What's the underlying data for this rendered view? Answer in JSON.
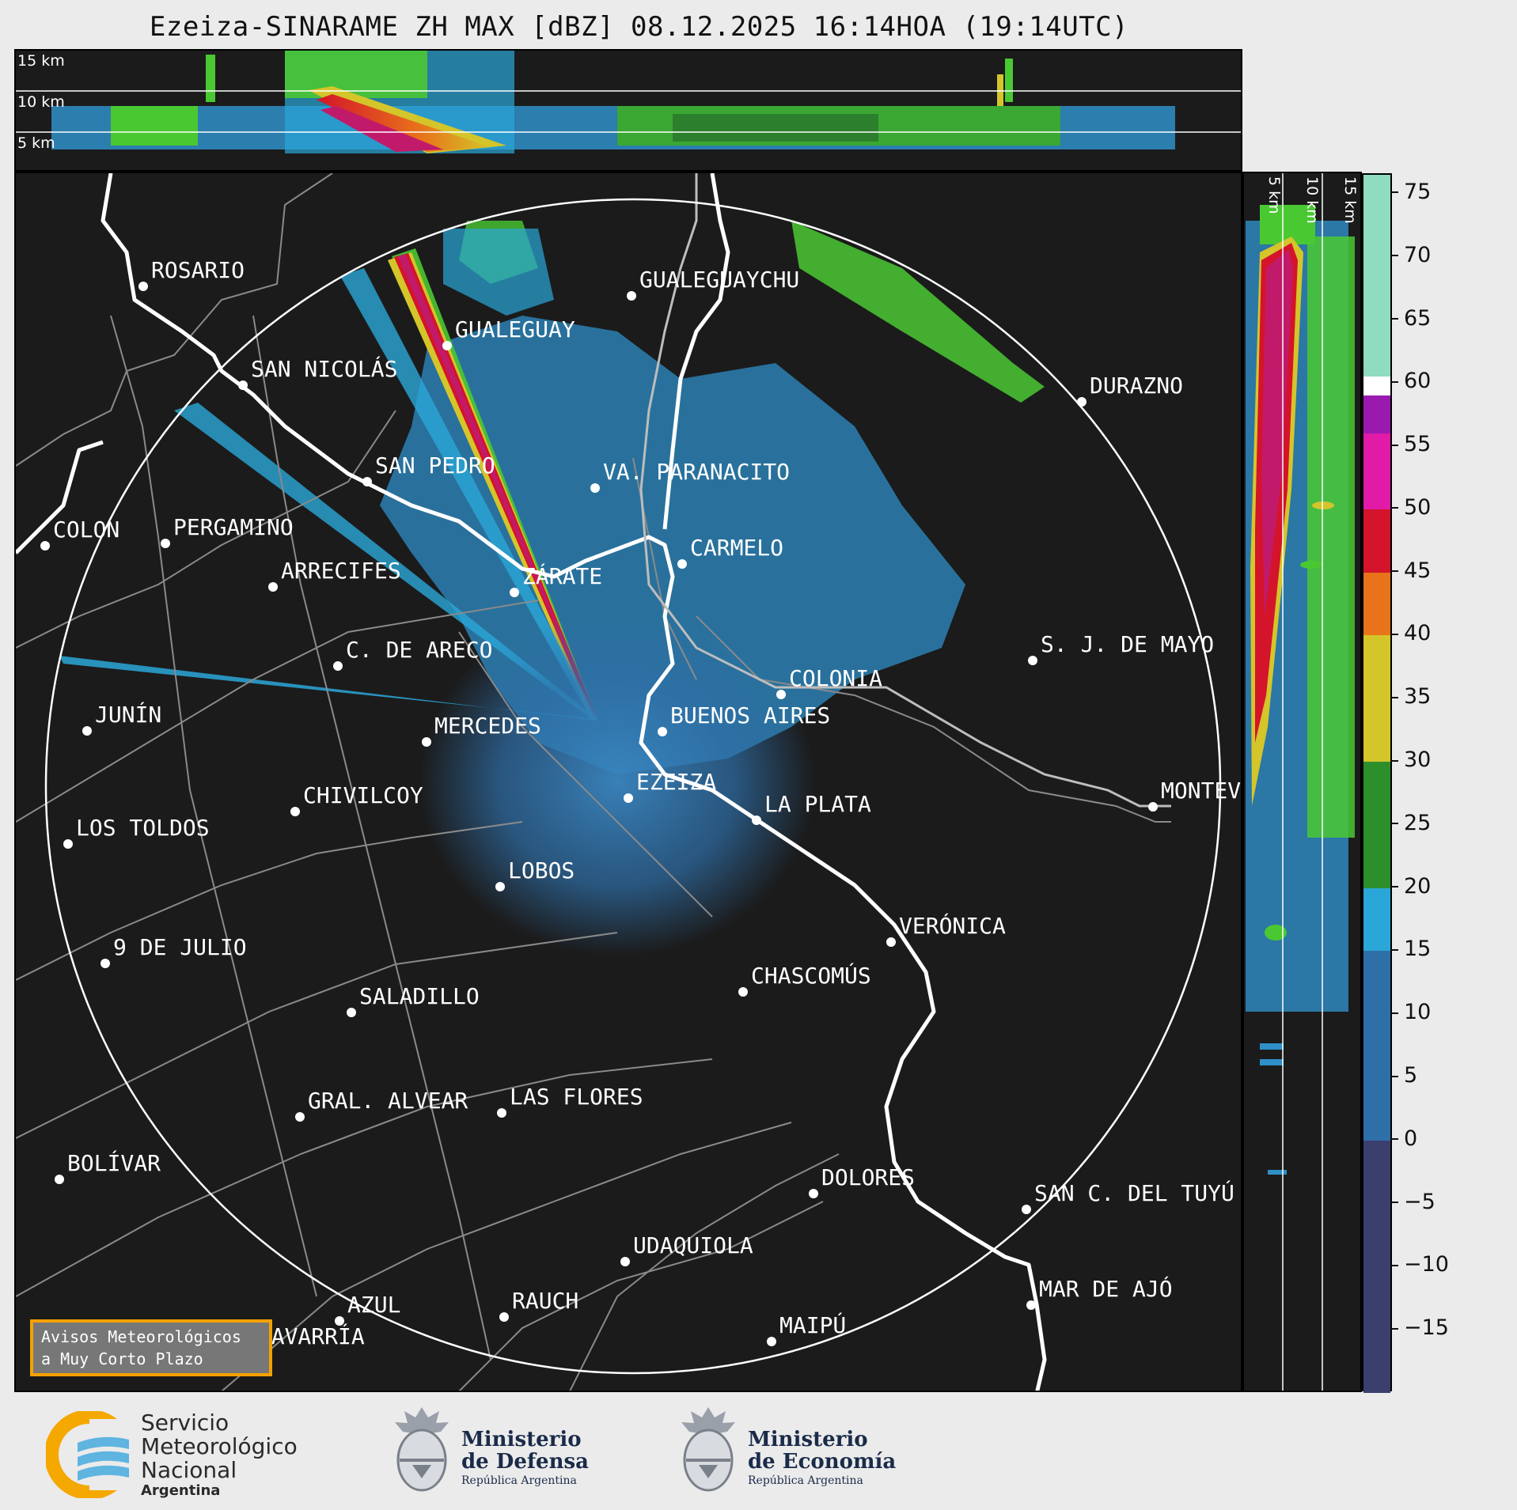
{
  "title": "Ezeiza-SINARAME ZH MAX [dBZ] 08.12.2025 16:14HOA (19:14UTC)",
  "height_labels": [
    "15 km",
    "10 km",
    "5 km"
  ],
  "cities": [
    {
      "name": "ROSARIO"
    },
    {
      "name": "GUALEGUAYCHU"
    },
    {
      "name": "GUALEGUAY"
    },
    {
      "name": "SAN NICOLÁS"
    },
    {
      "name": "DURAZNO"
    },
    {
      "name": "SAN PEDRO"
    },
    {
      "name": "VA. PARANACITO"
    },
    {
      "name": "COLON"
    },
    {
      "name": "PERGAMINO"
    },
    {
      "name": "CARMELO"
    },
    {
      "name": "ARRECIFES"
    },
    {
      "name": "ZÁRATE"
    },
    {
      "name": "C. DE ARECO"
    },
    {
      "name": "S. J. DE MAYO"
    },
    {
      "name": "COLONIA"
    },
    {
      "name": "JUNÍN"
    },
    {
      "name": "BUENOS AIRES"
    },
    {
      "name": "MERCEDES"
    },
    {
      "name": "EZEIZA"
    },
    {
      "name": "MONTEVIDEO"
    },
    {
      "name": "CHIVILCOY"
    },
    {
      "name": "LA PLATA"
    },
    {
      "name": "LOS TOLDOS"
    },
    {
      "name": "LOBOS"
    },
    {
      "name": "VERÓNICA"
    },
    {
      "name": "9 DE JULIO"
    },
    {
      "name": "CHASCOMÚS"
    },
    {
      "name": "SALADILLO"
    },
    {
      "name": "GRAL. ALVEAR"
    },
    {
      "name": "LAS FLORES"
    },
    {
      "name": "BOLÍVAR"
    },
    {
      "name": "DOLORES"
    },
    {
      "name": "SAN C. DEL TUYÚ"
    },
    {
      "name": "UDAQUIOLA"
    },
    {
      "name": "MAR DE AJÓ"
    },
    {
      "name": "AZUL"
    },
    {
      "name": "RAUCH"
    },
    {
      "name": "OLAVARRÍA"
    },
    {
      "name": "MAIPÚ"
    }
  ],
  "colorbar": {
    "unit": "dBZ",
    "ticks": [
      "75",
      "70",
      "65",
      "60",
      "55",
      "50",
      "45",
      "40",
      "35",
      "30",
      "25",
      "20",
      "15",
      "10",
      "5",
      "0",
      "−5",
      "−10",
      "−15"
    ],
    "range": [
      -20,
      76.5
    ],
    "stops": [
      {
        "from": -20,
        "to": 0,
        "color": "#3a3f6e"
      },
      {
        "from": 0,
        "to": 15,
        "color": "#2f6fa8"
      },
      {
        "from": 15,
        "to": 20,
        "color": "#2aa7d8"
      },
      {
        "from": 20,
        "to": 30,
        "color": "#2c8f2c"
      },
      {
        "from": 30,
        "to": 40,
        "color": "#d4c52a"
      },
      {
        "from": 40,
        "to": 45,
        "color": "#e8731a"
      },
      {
        "from": 45,
        "to": 50,
        "color": "#d4142a"
      },
      {
        "from": 50,
        "to": 56,
        "color": "#e21aa8"
      },
      {
        "from": 56,
        "to": 59,
        "color": "#9a1ab0"
      },
      {
        "from": 59,
        "to": 60.5,
        "color": "#ffffff"
      },
      {
        "from": 60.5,
        "to": 76.5,
        "color": "#8fdcc0"
      }
    ]
  },
  "avisos": {
    "line1": "Avisos Meteorológicos",
    "line2": "a Muy Corto Plazo"
  },
  "logos": {
    "smn": {
      "line1": "Servicio",
      "line2": "Meteorológico",
      "line3": "Nacional",
      "line4": "Argentina"
    },
    "defensa": {
      "line1": "Ministerio",
      "line2": "de Defensa",
      "line3": "República Argentina"
    },
    "economia": {
      "line1": "Ministerio",
      "line2": "de Economía",
      "line3": "República Argentina"
    }
  }
}
